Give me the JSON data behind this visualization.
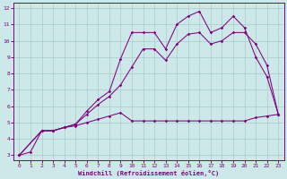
{
  "xlabel": "Windchill (Refroidissement éolien,°C)",
  "bg_color": "#cce8e8",
  "line_color": "#800080",
  "grid_color": "#aacccc",
  "xlim": [
    -0.5,
    23.5
  ],
  "ylim": [
    2.7,
    12.3
  ],
  "xticks": [
    0,
    1,
    2,
    3,
    4,
    5,
    6,
    7,
    8,
    9,
    10,
    11,
    12,
    13,
    14,
    15,
    16,
    17,
    18,
    19,
    20,
    21,
    22,
    23
  ],
  "yticks": [
    3,
    4,
    5,
    6,
    7,
    8,
    9,
    10,
    11,
    12
  ],
  "line1_x": [
    0,
    1,
    2,
    3,
    4,
    5,
    6,
    7,
    8,
    9,
    10,
    11,
    12,
    13,
    14,
    15,
    16,
    17,
    18,
    19,
    20,
    21,
    22,
    23
  ],
  "line1_y": [
    3.0,
    3.2,
    4.5,
    4.5,
    4.7,
    4.8,
    5.0,
    5.2,
    5.4,
    5.6,
    5.1,
    5.1,
    5.1,
    5.1,
    5.1,
    5.1,
    5.1,
    5.1,
    5.1,
    5.1,
    5.1,
    5.3,
    5.4,
    5.5
  ],
  "line2_x": [
    0,
    2,
    3,
    4,
    5,
    6,
    7,
    8,
    9,
    10,
    11,
    12,
    13,
    14,
    15,
    16,
    17,
    18,
    19,
    20,
    21,
    22,
    23
  ],
  "line2_y": [
    3.0,
    4.5,
    4.5,
    4.7,
    4.9,
    5.5,
    6.1,
    6.6,
    7.3,
    8.4,
    9.5,
    9.5,
    8.8,
    9.8,
    10.4,
    10.5,
    9.8,
    10.0,
    10.5,
    10.5,
    9.8,
    8.5,
    5.5
  ],
  "line3_x": [
    0,
    2,
    3,
    4,
    5,
    6,
    7,
    8,
    9,
    10,
    11,
    12,
    13,
    14,
    15,
    16,
    17,
    18,
    19,
    20,
    21,
    22,
    23
  ],
  "line3_y": [
    3.0,
    4.5,
    4.5,
    4.7,
    4.9,
    5.7,
    6.4,
    6.9,
    8.9,
    10.5,
    10.5,
    10.5,
    9.5,
    11.0,
    11.5,
    11.8,
    10.5,
    10.8,
    11.5,
    10.8,
    9.0,
    7.8,
    5.5
  ]
}
